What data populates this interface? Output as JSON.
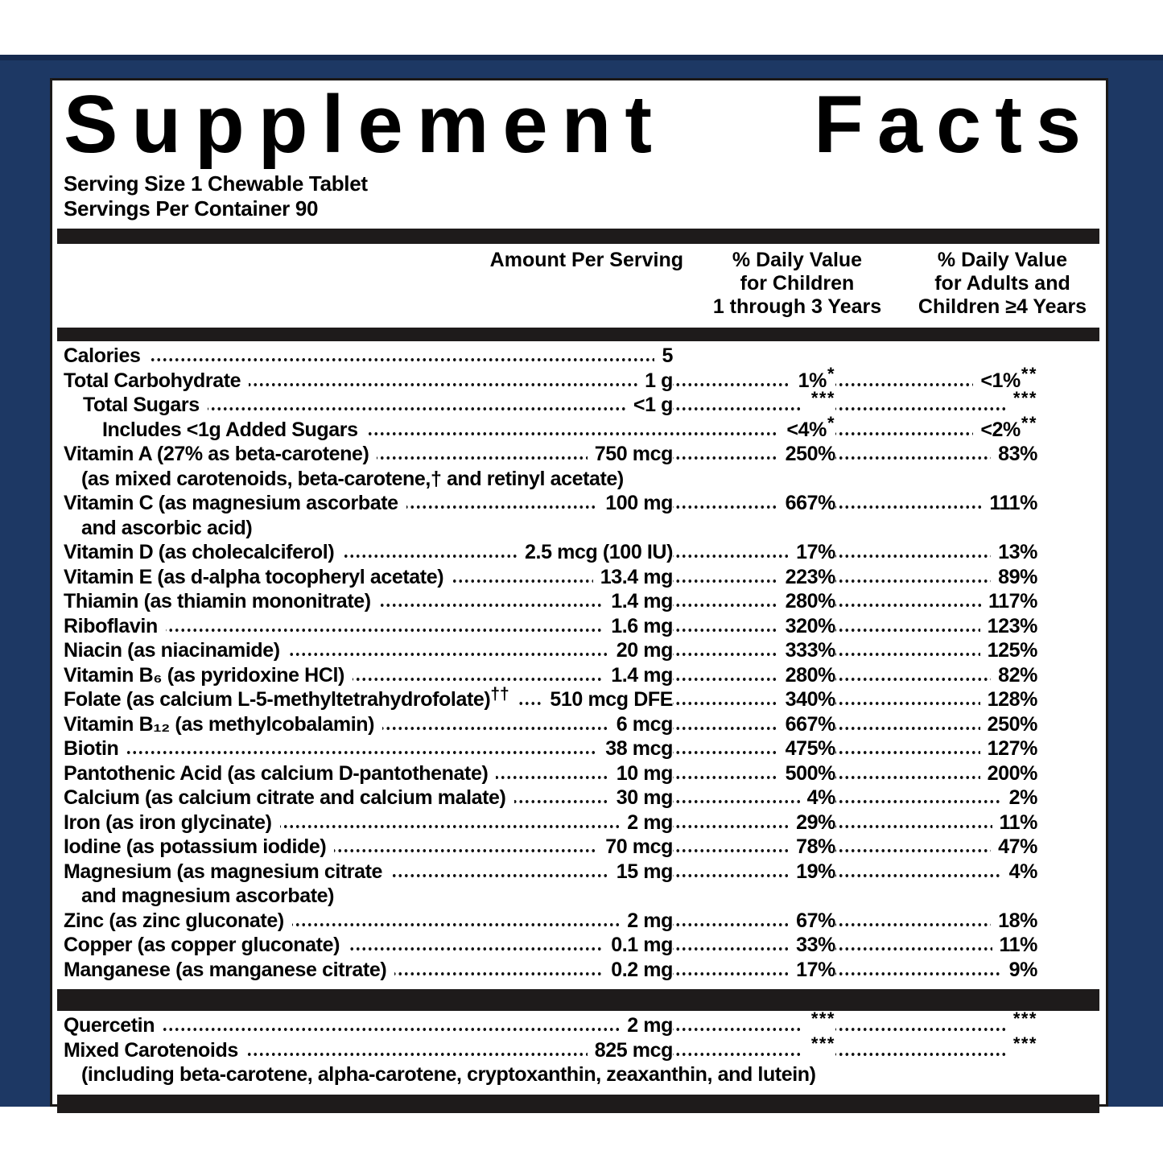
{
  "colors": {
    "navy": "#1d3864",
    "divider_bar": "#1e1b1b",
    "text": "#000000",
    "panel_bg": "#ffffff"
  },
  "label": {
    "title_word1": "Supplement",
    "title_word2": "Facts",
    "serving_size": "Serving Size 1 Chewable Tablet",
    "servings_per_container": "Servings Per Container 90",
    "header": {
      "amount": "Amount Per Serving",
      "child_lines": [
        "% Daily Value",
        "for Children",
        "1 through 3 Years"
      ],
      "adult_lines": [
        "% Daily Value",
        "for Adults and",
        "Children ≥4 Years"
      ]
    },
    "main_rows": [
      {
        "label": "Calories",
        "amount": "5",
        "endAfterAmount": true
      },
      {
        "label": "Total Carbohydrate",
        "amount": "1 g",
        "child": "1%",
        "childSup": "*",
        "adult": "<1%",
        "adultSup": "**"
      },
      {
        "label": "Total Sugars",
        "indent": 1,
        "amount": "<1 g",
        "childSup": "***",
        "adultSup": "***"
      },
      {
        "label": "Includes <1g Added Sugars",
        "indent": 2,
        "child": "<4%",
        "childSup": "*",
        "adult": "<2%",
        "adultSup": "**"
      },
      {
        "label": "Vitamin A (27% as beta-carotene)",
        "amount": "750 mcg",
        "child": "250%",
        "adult": "83%"
      },
      {
        "cont": true,
        "label": "(as mixed carotenoids, beta-carotene,† and retinyl acetate)"
      },
      {
        "label": "Vitamin C (as magnesium ascorbate",
        "amount": "100 mg",
        "child": "667%",
        "adult": "111%"
      },
      {
        "cont": true,
        "label": "and ascorbic acid)"
      },
      {
        "label": "Vitamin D (as cholecalciferol)",
        "amount": "2.5 mcg (100 IU)",
        "child": "17%",
        "adult": "13%"
      },
      {
        "label": "Vitamin E (as d-alpha tocopheryl acetate)",
        "amount": "13.4 mg",
        "child": "223%",
        "adult": "89%"
      },
      {
        "label": "Thiamin (as thiamin mononitrate)",
        "amount": "1.4 mg",
        "child": "280%",
        "adult": "117%"
      },
      {
        "label": "Riboflavin",
        "amount": "1.6 mg",
        "child": "320%",
        "adult": "123%"
      },
      {
        "label": "Niacin (as niacinamide)",
        "amount": "20 mg",
        "child": "333%",
        "adult": "125%"
      },
      {
        "label": "Vitamin B₆ (as pyridoxine HCl)",
        "amount": "1.4 mg",
        "child": "280%",
        "adult": "82%"
      },
      {
        "label": "Folate (as calcium L-5-methyltetrahydrofolate)",
        "labelSup": "††",
        "amount": "510 mcg DFE",
        "child": "340%",
        "adult": "128%"
      },
      {
        "label": "Vitamin B₁₂ (as methylcobalamin)",
        "amount": "6 mcg",
        "child": "667%",
        "adult": "250%"
      },
      {
        "label": "Biotin",
        "amount": "38 mcg",
        "child": "475%",
        "adult": "127%"
      },
      {
        "label": "Pantothenic Acid (as calcium D-pantothenate)",
        "amount": "10 mg",
        "child": "500%",
        "adult": "200%"
      },
      {
        "label": "Calcium (as calcium citrate and calcium malate)",
        "amount": "30 mg",
        "child": "4%",
        "adult": "2%"
      },
      {
        "label": "Iron (as iron glycinate)",
        "amount": "2 mg",
        "child": "29%",
        "adult": "11%"
      },
      {
        "label": "Iodine (as potassium iodide)",
        "amount": "70 mcg",
        "child": "78%",
        "adult": "47%"
      },
      {
        "label": "Magnesium (as magnesium citrate",
        "amount": "15 mg",
        "child": "19%",
        "adult": "4%"
      },
      {
        "cont": true,
        "label": "and magnesium ascorbate)"
      },
      {
        "label": "Zinc (as zinc gluconate)",
        "amount": "2 mg",
        "child": "67%",
        "adult": "18%"
      },
      {
        "label": "Copper (as copper gluconate)",
        "amount": "0.1 mg",
        "child": "33%",
        "adult": "11%"
      },
      {
        "label": "Manganese (as manganese citrate)",
        "amount": "0.2 mg",
        "child": "17%",
        "adult": "9%"
      }
    ],
    "extra_rows": [
      {
        "label": "Quercetin",
        "amount": "2 mg",
        "childSup": "***",
        "adultSup": "***"
      },
      {
        "label": "Mixed Carotenoids",
        "amount": "825 mcg",
        "childSup": "***",
        "adultSup": "***"
      },
      {
        "cont": true,
        "label": "(including beta-carotene, alpha-carotene, cryptoxanthin, zeaxanthin, and lutein)"
      }
    ]
  }
}
